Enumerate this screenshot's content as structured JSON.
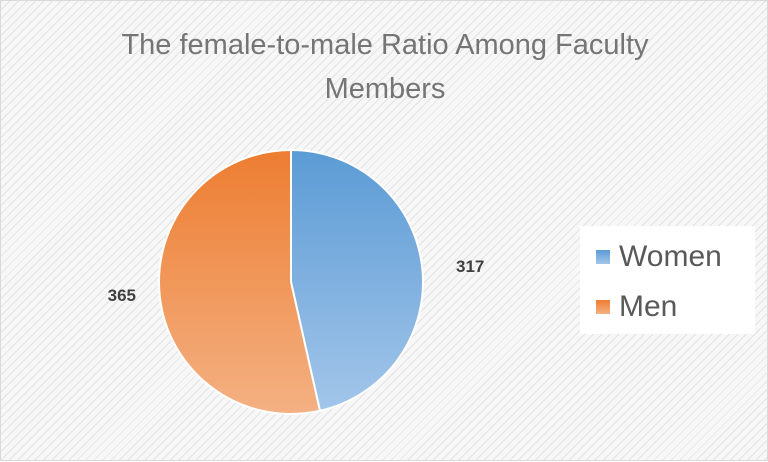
{
  "chart_data": {
    "type": "pie",
    "title": "The female-to-male Ratio Among Faculty Members",
    "categories": [
      "Women",
      "Men"
    ],
    "values": [
      317,
      365
    ],
    "data_labels": [
      "317",
      "365"
    ],
    "legend_position": "right",
    "colors": {
      "Women": [
        "#5b9bd5",
        "#a3c6ea"
      ],
      "Men": [
        "#ed7d31",
        "#f4b183"
      ]
    }
  }
}
